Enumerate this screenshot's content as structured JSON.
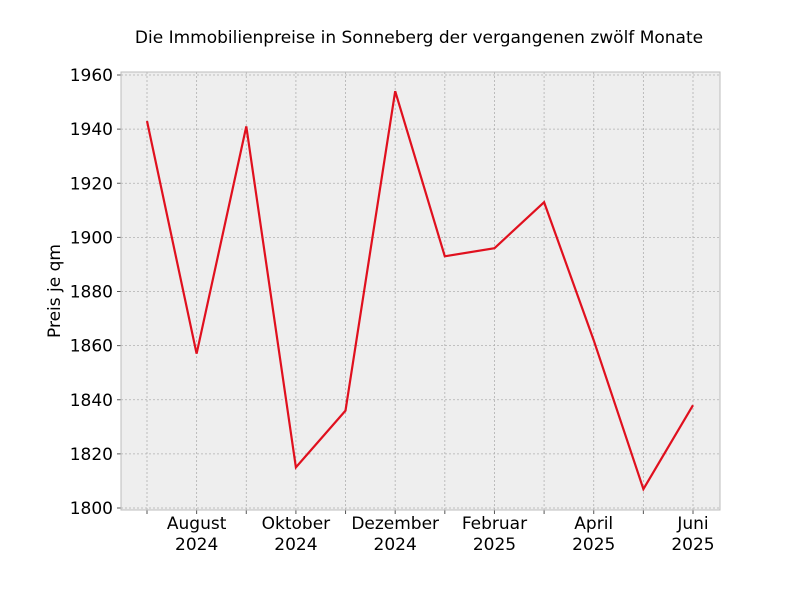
{
  "chart_data": {
    "type": "line",
    "title": "Die Immobilienpreise in Sonneberg der vergangenen zwölf Monate",
    "xlabel": "",
    "ylabel": "Preis je qm",
    "x": [
      "2024-07",
      "2024-08",
      "2024-09",
      "2024-10",
      "2024-11",
      "2024-12",
      "2025-01",
      "2025-02",
      "2025-03",
      "2025-04",
      "2025-05",
      "2025-06"
    ],
    "series": [
      {
        "values": [
          1943,
          1857,
          1941,
          1815,
          1836,
          1954,
          1893,
          1896,
          1913,
          1862,
          1807,
          1838
        ]
      }
    ],
    "ylim": [
      1800,
      1960
    ],
    "yticks": [
      1800,
      1820,
      1840,
      1860,
      1880,
      1900,
      1920,
      1940,
      1960
    ],
    "xticks": [
      "2024-07",
      "2024-08",
      "2024-09",
      "2024-10",
      "2024-11",
      "2024-12",
      "2025-01",
      "2025-02",
      "2025-03",
      "2025-04",
      "2025-05",
      "2025-06"
    ],
    "xtick_labels": [
      {
        "line1": "",
        "line2": ""
      },
      {
        "line1": "August",
        "line2": "2024"
      },
      {
        "line1": "",
        "line2": ""
      },
      {
        "line1": "Oktober",
        "line2": "2024"
      },
      {
        "line1": "",
        "line2": ""
      },
      {
        "line1": "Dezember",
        "line2": "2024"
      },
      {
        "line1": "",
        "line2": ""
      },
      {
        "line1": "Februar",
        "line2": "2025"
      },
      {
        "line1": "",
        "line2": ""
      },
      {
        "line1": "April",
        "line2": "2025"
      },
      {
        "line1": "",
        "line2": ""
      },
      {
        "line1": "Juni",
        "line2": "2025"
      }
    ],
    "grid": true,
    "colors": {
      "line": "#e0101e",
      "plot_bg": "#eeeeee",
      "grid": "#b0b0b0",
      "frame": "#bcbcbc"
    }
  }
}
